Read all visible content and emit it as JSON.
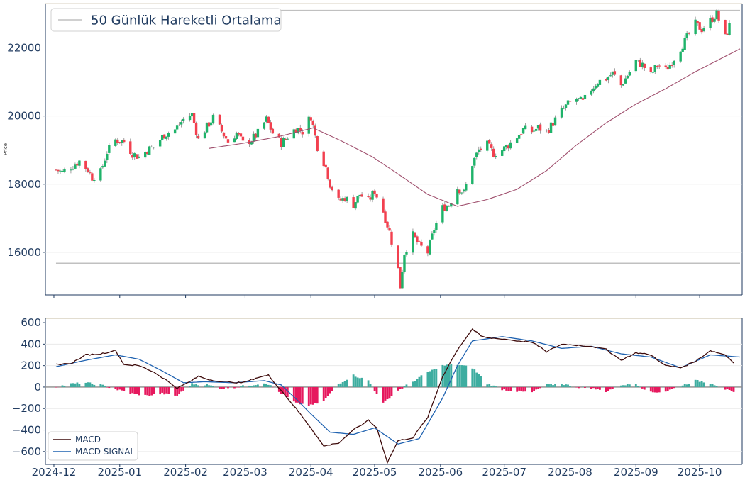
{
  "chart_data": [
    {
      "type": "candlestick",
      "ylabel": "Price",
      "ylim": [
        14750,
        23300
      ],
      "yticks": [
        16000,
        18000,
        20000,
        22000
      ],
      "ytick_labels": [
        "16000",
        "18000",
        "20000",
        "22000"
      ],
      "grid": true,
      "legend_position": "top-left",
      "legend": [
        "50 Günlük Hareketli Ortalama"
      ],
      "hlines": [
        23100,
        15680
      ],
      "colors": {
        "up": "#1fb36a",
        "down": "#f2404f",
        "ma": "#a0506e",
        "hline": "#c0c0c0",
        "axis": "#1f3a5f"
      },
      "x_range": [
        "2024-11-27",
        "2025-10-21"
      ],
      "close_anchors": [
        [
          "2024-12-02",
          18420
        ],
        [
          "2024-12-05",
          18350
        ],
        [
          "2024-12-10",
          18550
        ],
        [
          "2024-12-13",
          18680
        ],
        [
          "2024-12-17",
          18420
        ],
        [
          "2024-12-19",
          18200
        ],
        [
          "2024-12-23",
          18350
        ],
        [
          "2024-12-26",
          18950
        ],
        [
          "2024-12-30",
          19300
        ],
        [
          "2025-01-03",
          19250
        ],
        [
          "2025-01-07",
          18900
        ],
        [
          "2025-01-10",
          18800
        ],
        [
          "2025-01-14",
          19000
        ],
        [
          "2025-01-17",
          19100
        ],
        [
          "2025-01-22",
          19450
        ],
        [
          "2025-01-27",
          19600
        ],
        [
          "2025-01-31",
          19900
        ],
        [
          "2025-02-04",
          20050
        ],
        [
          "2025-02-07",
          19300
        ],
        [
          "2025-02-10",
          19600
        ],
        [
          "2025-02-14",
          19950
        ],
        [
          "2025-02-18",
          19550
        ],
        [
          "2025-02-21",
          19250
        ],
        [
          "2025-02-25",
          19500
        ],
        [
          "2025-02-28",
          19200
        ],
        [
          "2025-03-04",
          19300
        ],
        [
          "2025-03-07",
          19500
        ],
        [
          "2025-03-11",
          19900
        ],
        [
          "2025-03-14",
          19500
        ],
        [
          "2025-03-18",
          19200
        ],
        [
          "2025-03-21",
          19400
        ],
        [
          "2025-03-25",
          19650
        ],
        [
          "2025-03-28",
          19550
        ],
        [
          "2025-04-01",
          20000
        ],
        [
          "2025-04-04",
          19100
        ],
        [
          "2025-04-08",
          18500
        ],
        [
          "2025-04-10",
          18000
        ],
        [
          "2025-04-14",
          17500
        ],
        [
          "2025-04-17",
          17600
        ],
        [
          "2025-04-21",
          17400
        ],
        [
          "2025-04-24",
          17700
        ],
        [
          "2025-04-28",
          17500
        ],
        [
          "2025-05-01",
          17800
        ],
        [
          "2025-05-05",
          17200
        ],
        [
          "2025-05-08",
          16600
        ],
        [
          "2025-05-12",
          15500
        ],
        [
          "2025-05-13",
          15000
        ],
        [
          "2025-05-15",
          16000
        ],
        [
          "2025-05-19",
          16500
        ],
        [
          "2025-05-22",
          16200
        ],
        [
          "2025-05-26",
          16000
        ],
        [
          "2025-05-29",
          16700
        ],
        [
          "2025-06-02",
          17300
        ],
        [
          "2025-06-05",
          17400
        ],
        [
          "2025-06-09",
          17900
        ],
        [
          "2025-06-12",
          17750
        ],
        [
          "2025-06-16",
          18600
        ],
        [
          "2025-06-19",
          19000
        ],
        [
          "2025-06-23",
          19150
        ],
        [
          "2025-06-26",
          18900
        ],
        [
          "2025-06-30",
          19000
        ],
        [
          "2025-07-03",
          19150
        ],
        [
          "2025-07-07",
          19400
        ],
        [
          "2025-07-10",
          19600
        ],
        [
          "2025-07-14",
          19550
        ],
        [
          "2025-07-17",
          19650
        ],
        [
          "2025-07-21",
          19550
        ],
        [
          "2025-07-24",
          19800
        ],
        [
          "2025-07-28",
          20150
        ],
        [
          "2025-07-31",
          20350
        ],
        [
          "2025-08-04",
          20500
        ],
        [
          "2025-08-07",
          20400
        ],
        [
          "2025-08-11",
          20800
        ],
        [
          "2025-08-14",
          21000
        ],
        [
          "2025-08-18",
          21100
        ],
        [
          "2025-08-21",
          21250
        ],
        [
          "2025-08-25",
          20900
        ],
        [
          "2025-08-28",
          21200
        ],
        [
          "2025-09-01",
          21600
        ],
        [
          "2025-09-04",
          21500
        ],
        [
          "2025-09-08",
          21200
        ],
        [
          "2025-09-11",
          21500
        ],
        [
          "2025-09-15",
          21350
        ],
        [
          "2025-09-18",
          21600
        ],
        [
          "2025-09-22",
          22000
        ],
        [
          "2025-09-25",
          22300
        ],
        [
          "2025-09-29",
          22700
        ],
        [
          "2025-10-02",
          22550
        ],
        [
          "2025-10-06",
          22800
        ],
        [
          "2025-10-09",
          23000
        ],
        [
          "2025-10-13",
          22300
        ],
        [
          "2025-10-15",
          22650
        ]
      ],
      "ma_anchors": [
        [
          "2025-02-12",
          19050
        ],
        [
          "2025-02-28",
          19200
        ],
        [
          "2025-03-17",
          19400
        ],
        [
          "2025-04-02",
          19650
        ],
        [
          "2025-04-16",
          19250
        ],
        [
          "2025-04-30",
          18800
        ],
        [
          "2025-05-12",
          18300
        ],
        [
          "2025-05-26",
          17700
        ],
        [
          "2025-06-09",
          17350
        ],
        [
          "2025-06-23",
          17550
        ],
        [
          "2025-07-07",
          17850
        ],
        [
          "2025-07-21",
          18400
        ],
        [
          "2025-08-04",
          19150
        ],
        [
          "2025-08-18",
          19800
        ],
        [
          "2025-09-01",
          20350
        ],
        [
          "2025-09-15",
          20800
        ],
        [
          "2025-09-29",
          21300
        ],
        [
          "2025-10-13",
          21750
        ],
        [
          "2025-10-20",
          21970
        ]
      ]
    },
    {
      "type": "line_bar",
      "ylim": [
        -720,
        640
      ],
      "yticks": [
        -600,
        -400,
        -200,
        0,
        200,
        400,
        600
      ],
      "ytick_labels": [
        "−600",
        "−400",
        "−200",
        "0",
        "200",
        "400",
        "600"
      ],
      "grid": true,
      "legend_position": "bottom-left",
      "legend": [
        "MACD",
        "MACD SIGNAL"
      ],
      "colors": {
        "macd": "#3d0a0a",
        "signal": "#1f62b0",
        "hist_pos": "#3eada0",
        "hist_neg": "#e6195e",
        "zero": "#8c8c8c",
        "top_line": "#d8d2c0"
      },
      "x_range": [
        "2024-11-27",
        "2025-10-21"
      ],
      "macd_anchors": [
        [
          "2024-12-02",
          210
        ],
        [
          "2024-12-09",
          220
        ],
        [
          "2024-12-16",
          300
        ],
        [
          "2024-12-23",
          310
        ],
        [
          "2024-12-30",
          340
        ],
        [
          "2025-01-03",
          210
        ],
        [
          "2025-01-10",
          200
        ],
        [
          "2025-01-17",
          140
        ],
        [
          "2025-01-24",
          50
        ],
        [
          "2025-01-28",
          -10
        ],
        [
          "2025-02-03",
          50
        ],
        [
          "2025-02-07",
          100
        ],
        [
          "2025-02-12",
          70
        ],
        [
          "2025-02-19",
          50
        ],
        [
          "2025-02-28",
          40
        ],
        [
          "2025-03-07",
          90
        ],
        [
          "2025-03-12",
          110
        ],
        [
          "2025-03-18",
          -30
        ],
        [
          "2025-03-25",
          -200
        ],
        [
          "2025-04-01",
          -380
        ],
        [
          "2025-04-07",
          -550
        ],
        [
          "2025-04-14",
          -520
        ],
        [
          "2025-04-21",
          -400
        ],
        [
          "2025-04-28",
          -310
        ],
        [
          "2025-05-02",
          -380
        ],
        [
          "2025-05-07",
          -700
        ],
        [
          "2025-05-12",
          -500
        ],
        [
          "2025-05-19",
          -470
        ],
        [
          "2025-05-26",
          -280
        ],
        [
          "2025-06-02",
          100
        ],
        [
          "2025-06-09",
          350
        ],
        [
          "2025-06-16",
          540
        ],
        [
          "2025-06-21",
          460
        ],
        [
          "2025-06-30",
          450
        ],
        [
          "2025-07-07",
          430
        ],
        [
          "2025-07-14",
          420
        ],
        [
          "2025-07-21",
          330
        ],
        [
          "2025-07-28",
          400
        ],
        [
          "2025-08-04",
          390
        ],
        [
          "2025-08-11",
          380
        ],
        [
          "2025-08-18",
          350
        ],
        [
          "2025-08-25",
          250
        ],
        [
          "2025-09-01",
          320
        ],
        [
          "2025-09-08",
          300
        ],
        [
          "2025-09-15",
          200
        ],
        [
          "2025-09-22",
          180
        ],
        [
          "2025-09-29",
          240
        ],
        [
          "2025-10-06",
          340
        ],
        [
          "2025-10-13",
          300
        ],
        [
          "2025-10-17",
          230
        ]
      ],
      "signal_anchors": [
        [
          "2024-12-02",
          190
        ],
        [
          "2024-12-16",
          250
        ],
        [
          "2024-12-30",
          300
        ],
        [
          "2025-01-10",
          260
        ],
        [
          "2025-01-21",
          150
        ],
        [
          "2025-01-31",
          40
        ],
        [
          "2025-02-10",
          50
        ],
        [
          "2025-02-24",
          40
        ],
        [
          "2025-03-10",
          60
        ],
        [
          "2025-03-18",
          20
        ],
        [
          "2025-03-25",
          -110
        ],
        [
          "2025-04-01",
          -250
        ],
        [
          "2025-04-10",
          -420
        ],
        [
          "2025-04-21",
          -440
        ],
        [
          "2025-05-01",
          -380
        ],
        [
          "2025-05-12",
          -530
        ],
        [
          "2025-05-22",
          -480
        ],
        [
          "2025-06-02",
          -100
        ],
        [
          "2025-06-09",
          200
        ],
        [
          "2025-06-16",
          430
        ],
        [
          "2025-06-30",
          470
        ],
        [
          "2025-07-14",
          430
        ],
        [
          "2025-07-28",
          360
        ],
        [
          "2025-08-11",
          380
        ],
        [
          "2025-08-25",
          310
        ],
        [
          "2025-09-08",
          280
        ],
        [
          "2025-09-22",
          180
        ],
        [
          "2025-10-06",
          300
        ],
        [
          "2025-10-20",
          280
        ]
      ],
      "hist_anchors": [
        [
          "2024-12-02",
          0
        ],
        [
          "2024-12-09",
          30
        ],
        [
          "2024-12-16",
          40
        ],
        [
          "2024-12-23",
          20
        ],
        [
          "2024-12-30",
          -20
        ],
        [
          "2025-01-07",
          -60
        ],
        [
          "2025-01-14",
          -80
        ],
        [
          "2025-01-21",
          -60
        ],
        [
          "2025-01-28",
          -80
        ],
        [
          "2025-02-04",
          30
        ],
        [
          "2025-02-11",
          20
        ],
        [
          "2025-02-18",
          -10
        ],
        [
          "2025-02-25",
          0
        ],
        [
          "2025-03-04",
          20
        ],
        [
          "2025-03-11",
          40
        ],
        [
          "2025-03-18",
          -60
        ],
        [
          "2025-03-25",
          -150
        ],
        [
          "2025-04-01",
          -170
        ],
        [
          "2025-04-07",
          -130
        ],
        [
          "2025-04-14",
          30
        ],
        [
          "2025-04-21",
          110
        ],
        [
          "2025-04-28",
          60
        ],
        [
          "2025-05-05",
          -150
        ],
        [
          "2025-05-12",
          -30
        ],
        [
          "2025-05-19",
          50
        ],
        [
          "2025-05-26",
          140
        ],
        [
          "2025-06-02",
          200
        ],
        [
          "2025-06-09",
          210
        ],
        [
          "2025-06-16",
          180
        ],
        [
          "2025-06-23",
          30
        ],
        [
          "2025-06-30",
          -20
        ],
        [
          "2025-07-07",
          -40
        ],
        [
          "2025-07-14",
          -50
        ],
        [
          "2025-07-21",
          20
        ],
        [
          "2025-07-28",
          30
        ],
        [
          "2025-08-04",
          0
        ],
        [
          "2025-08-11",
          -10
        ],
        [
          "2025-08-18",
          -40
        ],
        [
          "2025-08-25",
          20
        ],
        [
          "2025-09-01",
          30
        ],
        [
          "2025-09-08",
          -50
        ],
        [
          "2025-09-15",
          -40
        ],
        [
          "2025-09-22",
          10
        ],
        [
          "2025-09-29",
          60
        ],
        [
          "2025-10-06",
          40
        ],
        [
          "2025-10-13",
          -20
        ],
        [
          "2025-10-17",
          -50
        ]
      ]
    }
  ],
  "x_axis": {
    "ticks": [
      "2024-12-01",
      "2025-01-01",
      "2025-02-01",
      "2025-03-01",
      "2025-04-01",
      "2025-05-01",
      "2025-06-01",
      "2025-07-01",
      "2025-08-01",
      "2025-09-01",
      "2025-10-01"
    ],
    "labels": [
      "2024-12",
      "2025-01",
      "2025-02",
      "2025-03",
      "2025-04",
      "2025-05",
      "2025-06",
      "2025-07",
      "2025-08",
      "2025-09",
      "2025-10"
    ]
  }
}
